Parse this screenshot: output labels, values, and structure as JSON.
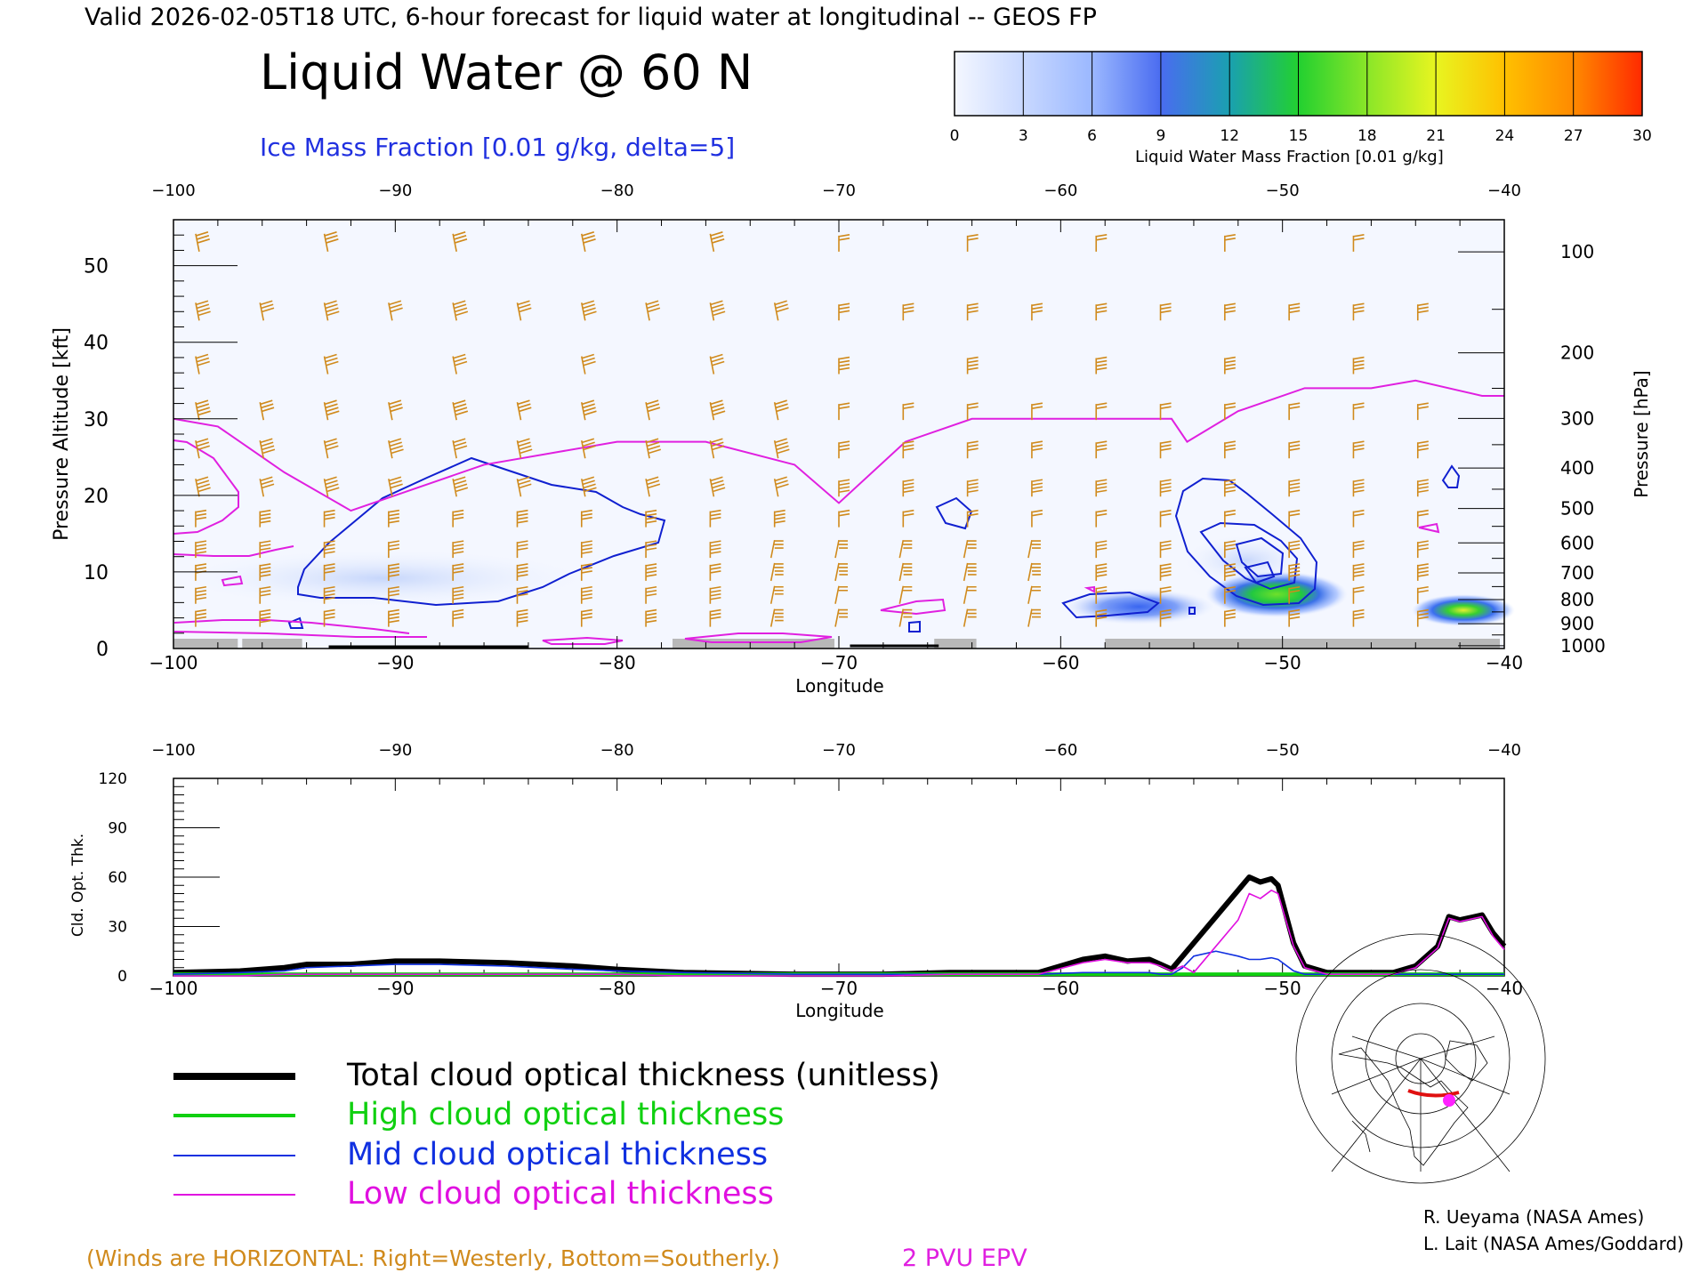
{
  "header": {
    "valid_line": "Valid 2026-02-05T18 UTC, 6-hour forecast for liquid water at longitudinal -- GEOS FP",
    "main_title": "Liquid Water @ 60 N",
    "subtitle": "Ice Mass Fraction [0.01 g/kg, delta=5]"
  },
  "colorbar": {
    "ticks": [
      "0",
      "3",
      "6",
      "9",
      "12",
      "15",
      "18",
      "21",
      "24",
      "27",
      "30"
    ],
    "label": "Liquid Water Mass Fraction [0.01 g/kg]",
    "colors": [
      "#f4f7ff",
      "#c8d8ff",
      "#9bb8ff",
      "#4a6cf0",
      "#1aa0b0",
      "#22d030",
      "#8ae628",
      "#e8f520",
      "#ffc000",
      "#ff8a00",
      "#ff2a00"
    ]
  },
  "colors": {
    "wind_barb": "#d08a1c",
    "ice_contour": "#1020d0",
    "epv_line": "#e020e0",
    "terrain": "#b8b8b8",
    "total_cloud": "#000000",
    "high_cloud": "#10d010",
    "mid_cloud": "#1030e0",
    "low_cloud": "#e010e0"
  },
  "chart_data": [
    {
      "type": "heatmap",
      "title": "Liquid Water @ 60 N",
      "xlabel": "Longitude",
      "ylabel_left": "Pressure Altitude [kft]",
      "ylabel_right": "Pressure [hPa]",
      "x_ticks": [
        "−100",
        "−90",
        "−80",
        "−70",
        "−60",
        "−50",
        "−40"
      ],
      "top_ticks": [
        "−100",
        "−90",
        "−80",
        "−70",
        "−60",
        "−50",
        "−40"
      ],
      "y_ticks": [
        "0",
        "10",
        "20",
        "30",
        "40",
        "50"
      ],
      "pressure_ticks": [
        "100",
        "200",
        "300",
        "400",
        "500",
        "600",
        "700",
        "800",
        "900",
        "1000"
      ],
      "xlim": [
        -100,
        -40
      ],
      "ylim_kft": [
        0,
        56
      ],
      "liquid_water_blobs": [
        {
          "lon": -51.2,
          "alt_kft": 7,
          "peak_value": 16
        },
        {
          "lon": -42,
          "alt_kft": 5,
          "peak_value": 19
        },
        {
          "lon": -58,
          "alt_kft": 5.5,
          "peak_value": 6
        },
        {
          "lon": -89,
          "alt_kft": 9,
          "peak_value": 2
        }
      ],
      "epv_2pvu_kft": [
        {
          "lon": -100,
          "alt": 30
        },
        {
          "lon": -98,
          "alt": 29
        },
        {
          "lon": -95,
          "alt": 23
        },
        {
          "lon": -92,
          "alt": 18
        },
        {
          "lon": -86,
          "alt": 24
        },
        {
          "lon": -80,
          "alt": 27
        },
        {
          "lon": -76,
          "alt": 27
        },
        {
          "lon": -72,
          "alt": 24
        },
        {
          "lon": -70,
          "alt": 19
        },
        {
          "lon": -67,
          "alt": 27
        },
        {
          "lon": -64,
          "alt": 30
        },
        {
          "lon": -60,
          "alt": 30
        },
        {
          "lon": -55,
          "alt": 30
        },
        {
          "lon": -54.3,
          "alt": 27
        },
        {
          "lon": -52,
          "alt": 31
        },
        {
          "lon": -49,
          "alt": 34
        },
        {
          "lon": -46,
          "alt": 34
        },
        {
          "lon": -44,
          "alt": 35
        },
        {
          "lon": -41,
          "alt": 33
        },
        {
          "lon": -40,
          "alt": 33
        }
      ]
    },
    {
      "type": "line",
      "xlabel": "Longitude",
      "ylabel": "Cld. Opt. Thk.",
      "x_ticks": [
        "−100",
        "−90",
        "−80",
        "−70",
        "−60",
        "−50",
        "−40"
      ],
      "top_ticks": [
        "−100",
        "−90",
        "−80",
        "−70",
        "−60",
        "−50",
        "−40"
      ],
      "y_ticks": [
        "0",
        "30",
        "60",
        "90",
        "120"
      ],
      "xlim": [
        -100,
        -40
      ],
      "ylim": [
        0,
        120
      ],
      "x": [
        -100,
        -97,
        -95,
        -94,
        -92,
        -90,
        -88,
        -85,
        -82,
        -80,
        -77,
        -72,
        -68,
        -65,
        -61,
        -59,
        -58,
        -57,
        -56,
        -55.5,
        -55,
        -54.5,
        -54,
        -53,
        -52,
        -51.5,
        -51,
        -50.5,
        -50.2,
        -49.5,
        -49,
        -48,
        -45,
        -44,
        -43,
        -42.5,
        -42,
        -41,
        -40.5,
        -40
      ],
      "series": [
        {
          "name": "Total cloud optical thickness (unitless)",
          "values": [
            2,
            3,
            5,
            7,
            7,
            9,
            9,
            8,
            6,
            4,
            2,
            1,
            1,
            2,
            2,
            10,
            12,
            9,
            10,
            7,
            4,
            12,
            20,
            36,
            52,
            60,
            57,
            59,
            55,
            20,
            6,
            2,
            2,
            6,
            18,
            36,
            34,
            37,
            26,
            18
          ]
        },
        {
          "name": "High cloud optical thickness",
          "values": [
            1,
            1,
            1,
            1,
            1,
            1,
            1,
            1,
            1,
            1,
            1,
            1,
            1,
            1,
            1,
            1,
            1,
            1,
            1,
            1,
            1,
            1,
            1,
            1,
            1,
            1,
            1,
            1,
            1,
            1,
            1,
            1,
            1,
            1,
            1,
            1,
            1,
            1,
            1,
            1
          ]
        },
        {
          "name": "Mid cloud optical thickness",
          "values": [
            1,
            2,
            3,
            5,
            6,
            7,
            7,
            6,
            4,
            3,
            2,
            1,
            1,
            1,
            1,
            2,
            2,
            2,
            2,
            1,
            1,
            5,
            12,
            15,
            12,
            10,
            10,
            11,
            10,
            3,
            1,
            1,
            1,
            1,
            1,
            1,
            1,
            1,
            1,
            1
          ]
        },
        {
          "name": "Low cloud optical thickness",
          "values": [
            0,
            0,
            1,
            1,
            1,
            1,
            1,
            1,
            1,
            1,
            0,
            0,
            0,
            1,
            1,
            8,
            10,
            8,
            8,
            6,
            3,
            6,
            2,
            18,
            34,
            50,
            47,
            52,
            50,
            18,
            5,
            1,
            1,
            5,
            17,
            35,
            33,
            36,
            24,
            16
          ]
        }
      ]
    }
  ],
  "legend": {
    "items": [
      "Total cloud optical thickness (unitless)",
      "High cloud optical thickness",
      "Mid cloud optical thickness",
      "Low cloud optical thickness"
    ]
  },
  "footer": {
    "winds_note": "(Winds are HORIZONTAL: Right=Westerly, Bottom=Southerly.)",
    "epv_label": "2 PVU EPV",
    "credit1": "R. Ueyama (NASA Ames)",
    "credit2": "L. Lait (NASA Ames/Goddard)"
  }
}
